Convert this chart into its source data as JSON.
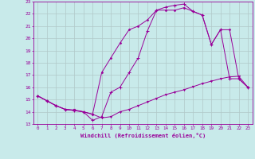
{
  "xlabel": "Windchill (Refroidissement éolien,°C)",
  "background_color": "#c8eaea",
  "grid_color": "#b0c8c8",
  "line_color": "#990099",
  "xlim": [
    -0.5,
    23.5
  ],
  "ylim": [
    13,
    23
  ],
  "xticks": [
    0,
    1,
    2,
    3,
    4,
    5,
    6,
    7,
    8,
    9,
    10,
    11,
    12,
    13,
    14,
    15,
    16,
    17,
    18,
    19,
    20,
    21,
    22,
    23
  ],
  "yticks": [
    13,
    14,
    15,
    16,
    17,
    18,
    19,
    20,
    21,
    22,
    23
  ],
  "line1_x": [
    0,
    1,
    2,
    3,
    4,
    5,
    6,
    7,
    8,
    9,
    10,
    11,
    12,
    13,
    14,
    15,
    16,
    17,
    18,
    19,
    20,
    21,
    22,
    23
  ],
  "line1_y": [
    15.3,
    14.9,
    14.5,
    14.2,
    14.15,
    14.0,
    13.8,
    13.5,
    13.6,
    14.0,
    14.2,
    14.5,
    14.8,
    15.1,
    15.4,
    15.6,
    15.8,
    16.05,
    16.3,
    16.5,
    16.7,
    16.85,
    16.9,
    16.0
  ],
  "line2_x": [
    0,
    1,
    2,
    3,
    4,
    5,
    6,
    7,
    8,
    9,
    10,
    11,
    12,
    13,
    14,
    15,
    16,
    17,
    18,
    19,
    20,
    21,
    22,
    23
  ],
  "line2_y": [
    15.3,
    14.9,
    14.5,
    14.2,
    14.1,
    14.0,
    13.3,
    13.6,
    15.6,
    16.0,
    17.2,
    18.4,
    20.6,
    22.3,
    22.55,
    22.7,
    22.8,
    22.2,
    21.9,
    19.5,
    20.7,
    16.7,
    16.7,
    16.0
  ],
  "line3_x": [
    0,
    1,
    2,
    3,
    4,
    5,
    6,
    7,
    8,
    9,
    10,
    11,
    12,
    13,
    14,
    15,
    16,
    17,
    18,
    19,
    20,
    21,
    22,
    23
  ],
  "line3_y": [
    15.3,
    14.9,
    14.5,
    14.2,
    14.1,
    14.0,
    13.8,
    17.2,
    18.4,
    19.6,
    20.7,
    21.0,
    21.5,
    22.3,
    22.3,
    22.3,
    22.5,
    22.2,
    21.9,
    19.5,
    20.7,
    20.7,
    16.7,
    16.0
  ]
}
